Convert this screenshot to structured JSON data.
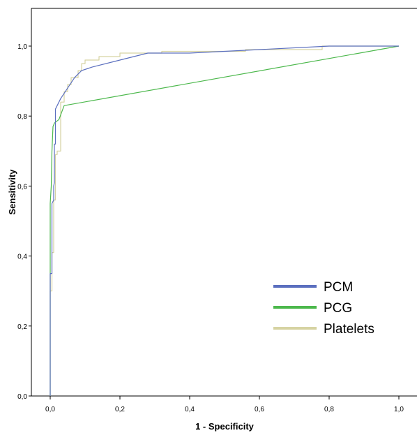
{
  "chart_data": {
    "type": "line",
    "title": "",
    "xlabel": "1 - Specificity",
    "ylabel": "Sensitivity",
    "xlim": [
      0,
      1
    ],
    "ylim": [
      0,
      1
    ],
    "x_ticks": [
      "0,0",
      "0,2",
      "0,4",
      "0,6",
      "0,8",
      "1,0"
    ],
    "y_ticks": [
      "0,0",
      "0,2",
      "0,4",
      "0,6",
      "0,8",
      "1,0"
    ],
    "grid": false,
    "legend_position": "bottom-right",
    "series": [
      {
        "name": "PCM",
        "color": "#5b6fbf",
        "points": [
          [
            0,
            0
          ],
          [
            0,
            0.35
          ],
          [
            0.005,
            0.35
          ],
          [
            0.005,
            0.55
          ],
          [
            0.01,
            0.56
          ],
          [
            0.01,
            0.6
          ],
          [
            0.012,
            0.61
          ],
          [
            0.012,
            0.72
          ],
          [
            0.015,
            0.72
          ],
          [
            0.015,
            0.82
          ],
          [
            0.02,
            0.83
          ],
          [
            0.03,
            0.85
          ],
          [
            0.05,
            0.88
          ],
          [
            0.07,
            0.91
          ],
          [
            0.09,
            0.93
          ],
          [
            0.12,
            0.94
          ],
          [
            0.2,
            0.96
          ],
          [
            0.28,
            0.98
          ],
          [
            0.4,
            0.98
          ],
          [
            0.6,
            0.99
          ],
          [
            0.8,
            1.0
          ],
          [
            1,
            1
          ]
        ]
      },
      {
        "name": "PCG",
        "color": "#4cb84c",
        "points": [
          [
            0,
            0
          ],
          [
            0,
            0.55
          ],
          [
            0.003,
            0.6
          ],
          [
            0.005,
            0.7
          ],
          [
            0.008,
            0.77
          ],
          [
            0.012,
            0.78
          ],
          [
            0.025,
            0.79
          ],
          [
            0.04,
            0.83
          ],
          [
            1,
            1
          ]
        ]
      },
      {
        "name": "Platelets",
        "color": "#d6d3a2",
        "points": [
          [
            0,
            0
          ],
          [
            0,
            0.3
          ],
          [
            0.005,
            0.3
          ],
          [
            0.005,
            0.41
          ],
          [
            0.01,
            0.41
          ],
          [
            0.01,
            0.56
          ],
          [
            0.015,
            0.56
          ],
          [
            0.015,
            0.69
          ],
          [
            0.02,
            0.69
          ],
          [
            0.02,
            0.7
          ],
          [
            0.03,
            0.7
          ],
          [
            0.03,
            0.84
          ],
          [
            0.04,
            0.84
          ],
          [
            0.04,
            0.87
          ],
          [
            0.05,
            0.87
          ],
          [
            0.05,
            0.89
          ],
          [
            0.06,
            0.89
          ],
          [
            0.06,
            0.91
          ],
          [
            0.08,
            0.91
          ],
          [
            0.08,
            0.93
          ],
          [
            0.09,
            0.93
          ],
          [
            0.09,
            0.95
          ],
          [
            0.1,
            0.95
          ],
          [
            0.1,
            0.96
          ],
          [
            0.14,
            0.96
          ],
          [
            0.14,
            0.97
          ],
          [
            0.2,
            0.97
          ],
          [
            0.2,
            0.98
          ],
          [
            0.32,
            0.98
          ],
          [
            0.32,
            0.985
          ],
          [
            0.56,
            0.985
          ],
          [
            0.56,
            0.99
          ],
          [
            0.78,
            0.99
          ],
          [
            0.78,
            1.0
          ],
          [
            1,
            1
          ]
        ]
      }
    ]
  }
}
